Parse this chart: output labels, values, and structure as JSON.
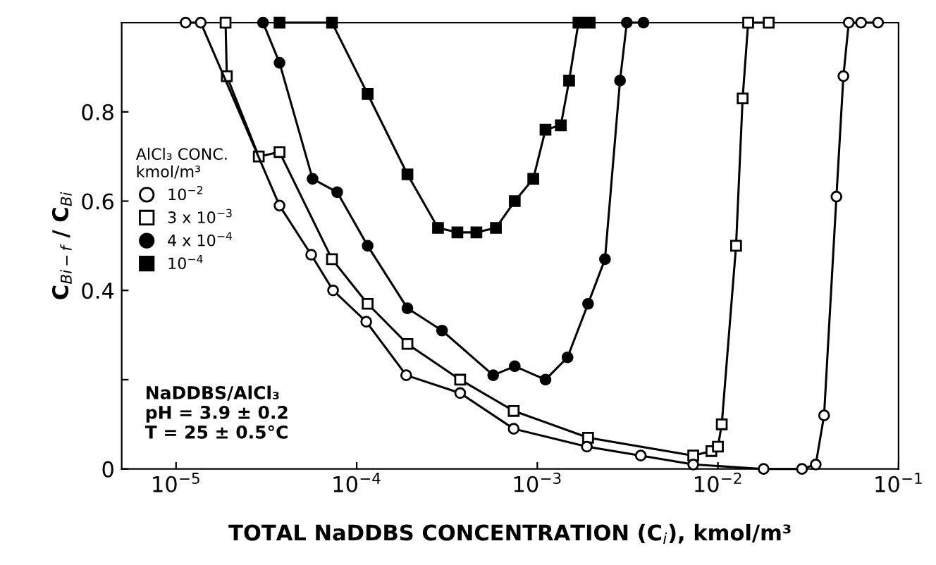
{
  "chart_data": {
    "type": "line",
    "xlabel": "TOTAL NaDDBS CONCENTRATION (C$_{i}$), kmol/m³",
    "ylabel": "C$_{Bi−f}$ / C$_{Bi}$",
    "legend_title": "AlCl₃ CONC.\nkmol/m³",
    "legend": "center left",
    "log": "x",
    "grid": false,
    "line_style": "solid",
    "xlim": [
      5e-06,
      0.1
    ],
    "ylim": [
      0,
      1
    ],
    "xticks": [
      {
        "value": 1e-05,
        "label": "10$^{−5}$"
      },
      {
        "value": 0.0001,
        "label": "10$^{−4}$"
      },
      {
        "value": 0.001,
        "label": "10$^{−3}$"
      },
      {
        "value": 0.01,
        "label": "10$^{−2}$"
      },
      {
        "value": 0.1,
        "label": "10$^{−1}$"
      }
    ],
    "yticks": [
      0,
      {
        "value": 0.2,
        "label": null
      },
      0.4,
      0.6,
      0.8
    ],
    "annotations": [
      "NaDDBS/AlCl₃\npH = 3.9 ± 0.2\nT = 25 ± 0.5°C"
    ],
    "series": [
      {
        "name": "10$^{−2}$",
        "color": "#ffffff",
        "marker": "circle",
        "x": [
          1.13e-05,
          1.37e-05,
          3.74e-05,
          5.6e-05,
          7.4e-05,
          0.000113,
          0.000188,
          0.000374,
          0.00074,
          0.00188,
          0.00374,
          0.0073,
          0.0179,
          0.0292,
          0.0348,
          0.0387,
          0.0453,
          0.0495,
          0.053,
          0.062,
          0.077
        ],
        "values": [
          1.0,
          1.0,
          0.59,
          0.48,
          0.4,
          0.33,
          0.21,
          0.17,
          0.09,
          0.05,
          0.03,
          0.01,
          0.0,
          0.0,
          0.01,
          0.12,
          0.61,
          0.88,
          1.0,
          1.0,
          1.0
        ]
      },
      {
        "name": "3 x 10$^{−3}$",
        "color": "#ffffff",
        "marker": "square",
        "x": [
          1.88e-05,
          1.91e-05,
          2.87e-05,
          3.74e-05,
          7.3e-05,
          0.000115,
          0.000191,
          0.000374,
          0.00074,
          0.00191,
          0.0073,
          0.0092,
          0.01,
          0.0105,
          0.0126,
          0.0137,
          0.0147,
          0.0191
        ],
        "values": [
          1.0,
          0.88,
          0.7,
          0.71,
          0.47,
          0.37,
          0.28,
          0.2,
          0.13,
          0.07,
          0.03,
          0.04,
          0.05,
          0.1,
          0.5,
          0.83,
          1.0,
          1.0
        ]
      },
      {
        "name": "4 x 10$^{−4}$",
        "color": "#000000",
        "marker": "circle",
        "x": [
          3.03e-05,
          3.74e-05,
          5.7e-05,
          7.8e-05,
          0.000115,
          0.000191,
          0.000297,
          0.00057,
          0.00075,
          0.00111,
          0.00147,
          0.00191,
          0.00237,
          0.00287,
          0.00313,
          0.00387
        ],
        "values": [
          1.0,
          0.91,
          0.65,
          0.62,
          0.5,
          0.36,
          0.31,
          0.21,
          0.23,
          0.2,
          0.25,
          0.37,
          0.47,
          0.87,
          1.0,
          1.0
        ]
      },
      {
        "name": "10$^{−4}$",
        "color": "#000000",
        "marker": "square",
        "x": [
          3.74e-05,
          7.3e-05,
          0.000115,
          0.000191,
          0.000282,
          0.000361,
          0.00046,
          0.00059,
          0.00075,
          0.00095,
          0.00111,
          0.00135,
          0.0015,
          0.00169,
          0.00195
        ],
        "values": [
          1.0,
          1.0,
          0.84,
          0.66,
          0.54,
          0.53,
          0.53,
          0.54,
          0.6,
          0.65,
          0.76,
          0.77,
          0.87,
          1.0,
          1.0
        ]
      }
    ]
  }
}
